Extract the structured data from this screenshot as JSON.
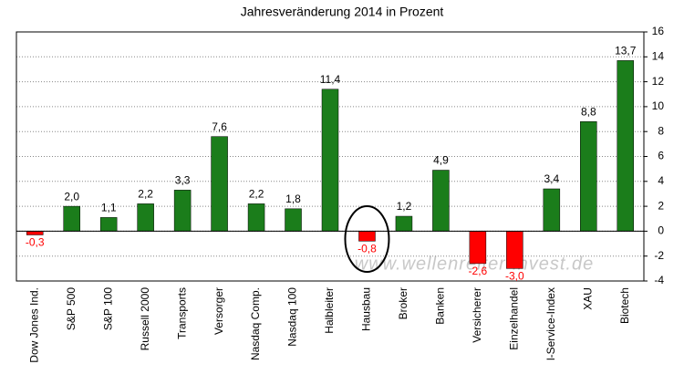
{
  "chart_data": {
    "type": "bar",
    "title": "Jahresveränderung 2014 in Prozent",
    "categories": [
      "Dow Jones Ind.",
      "S&P 500",
      "S&P 100",
      "Russell 2000",
      "Transports",
      "Versorger",
      "Nasdaq Comp.",
      "Nasdaq 100",
      "Halbleiter",
      "Hausbau",
      "Broker",
      "Banken",
      "Versicherer",
      "Einzelhandel",
      "l-Service-Index",
      "XAU",
      "Biotech"
    ],
    "values": [
      -0.3,
      2.0,
      1.1,
      2.2,
      3.3,
      7.6,
      2.2,
      1.8,
      11.4,
      -0.8,
      1.2,
      4.9,
      -2.6,
      -3.0,
      3.4,
      8.8,
      13.7
    ],
    "value_labels": [
      "-0,3",
      "2,0",
      "1,1",
      "2,2",
      "3,3",
      "7,6",
      "2,2",
      "1,8",
      "11,4",
      "-0,8",
      "1,2",
      "4,9",
      "-2,6",
      "-3,0",
      "3,4",
      "8,8",
      "13,7"
    ],
    "positive_color": "#1b7d1b",
    "negative_color": "#ff0000",
    "ylim": [
      -4,
      16
    ],
    "yticks": [
      -4,
      -2,
      0,
      2,
      4,
      6,
      8,
      10,
      12,
      14,
      16
    ],
    "grid": true,
    "watermark": "www.wellenreiter-invest.de"
  }
}
